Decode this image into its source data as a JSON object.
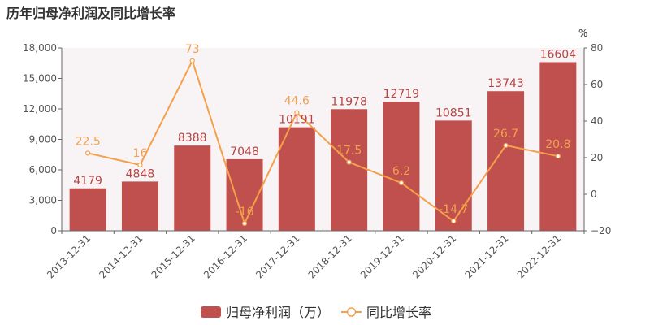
{
  "chart_data": {
    "type": "bar",
    "title": "历年归母净利润及同比增长率",
    "categories": [
      "2013-12-31",
      "2014-12-31",
      "2015-12-31",
      "2016-12-31",
      "2017-12-31",
      "2018-12-31",
      "2019-12-31",
      "2020-12-31",
      "2021-12-31",
      "2022-12-31"
    ],
    "series": [
      {
        "name": "归母净利润（万）",
        "type": "bar",
        "axis": "left",
        "color": "#c0504d",
        "values": [
          4179,
          4848,
          8388,
          7048,
          10191,
          11978,
          12719,
          10851,
          13743,
          16604
        ],
        "labels": [
          "4179",
          "4848",
          "8388",
          "7048",
          "10191",
          "11978",
          "12719",
          "10851",
          "13743",
          "16604"
        ]
      },
      {
        "name": "同比增长率",
        "type": "line",
        "axis": "right",
        "color": "#f4a04b",
        "values": [
          22.5,
          16,
          73,
          -16,
          44.6,
          17.5,
          6.2,
          -14.7,
          26.7,
          20.8
        ],
        "labels": [
          "22.5",
          "16",
          "73",
          "-16",
          "44.6",
          "17.5",
          "6.2",
          "-14.7",
          "26.7",
          "20.8"
        ]
      }
    ],
    "y_left": {
      "min": 0,
      "max": 18000,
      "ticks": [
        "0",
        "3,000",
        "6,000",
        "9,000",
        "12,000",
        "15,000",
        "18,000"
      ],
      "values": [
        0,
        3000,
        6000,
        9000,
        12000,
        15000,
        18000
      ]
    },
    "y_right": {
      "min": -20,
      "max": 80,
      "unit": "%",
      "ticks": [
        "−20",
        "0",
        "20",
        "40",
        "60",
        "80"
      ],
      "values": [
        -20,
        0,
        20,
        40,
        60,
        80
      ]
    },
    "grid": false,
    "legend_position": "bottom",
    "plot_background": "#f8f4f6"
  }
}
